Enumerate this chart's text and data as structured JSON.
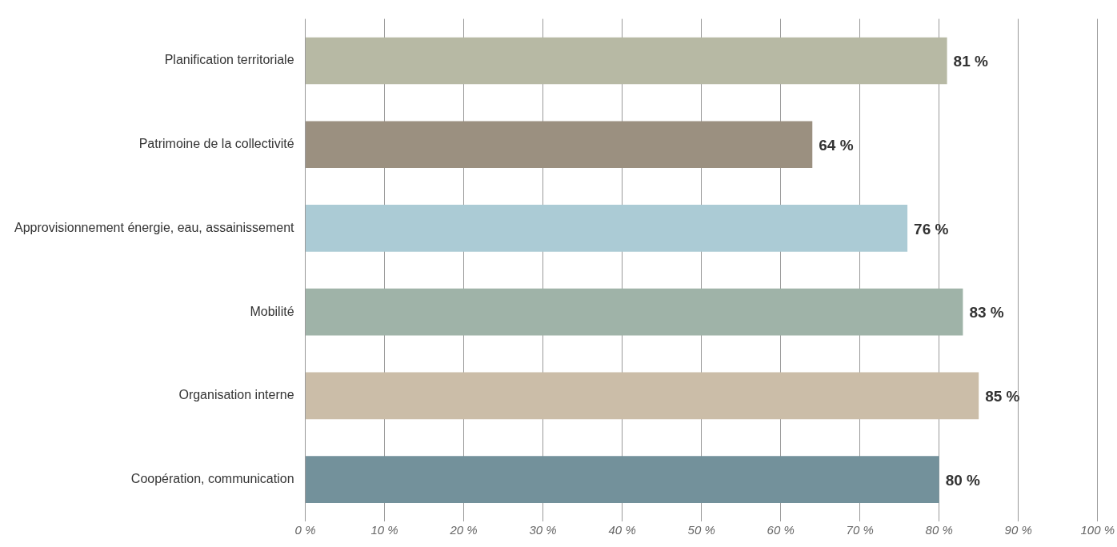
{
  "chart_data": {
    "type": "bar",
    "orientation": "horizontal",
    "categories": [
      "Planification territoriale",
      "Patrimoine de la collectivité",
      "Approvisionnement énergie, eau, assainissement",
      "Mobilité",
      "Organisation interne",
      "Coopération, communication"
    ],
    "values": [
      81,
      64,
      76,
      83,
      85,
      80
    ],
    "colors": [
      "#b7b9a4",
      "#9b9080",
      "#abcbd5",
      "#9fb3a8",
      "#cbbda8",
      "#73919b"
    ],
    "xlim": [
      0,
      100
    ],
    "xticks": [
      {
        "value": 0,
        "label": "0 %"
      },
      {
        "value": 10,
        "label": "10 %"
      },
      {
        "value": 20,
        "label": "20 %"
      },
      {
        "value": 30,
        "label": "30 %"
      },
      {
        "value": 40,
        "label": "40 %"
      },
      {
        "value": 50,
        "label": "50 %"
      },
      {
        "value": 60,
        "label": "60 %"
      },
      {
        "value": 70,
        "label": "70 %"
      },
      {
        "value": 80,
        "label": "80 %"
      },
      {
        "value": 90,
        "label": "90 %"
      },
      {
        "value": 100,
        "label": "100 %"
      }
    ],
    "value_labels": [
      "81 %",
      "64 %",
      "76 %",
      "83 %",
      "85 %",
      "80 %"
    ],
    "grid": "x",
    "legend": false
  }
}
